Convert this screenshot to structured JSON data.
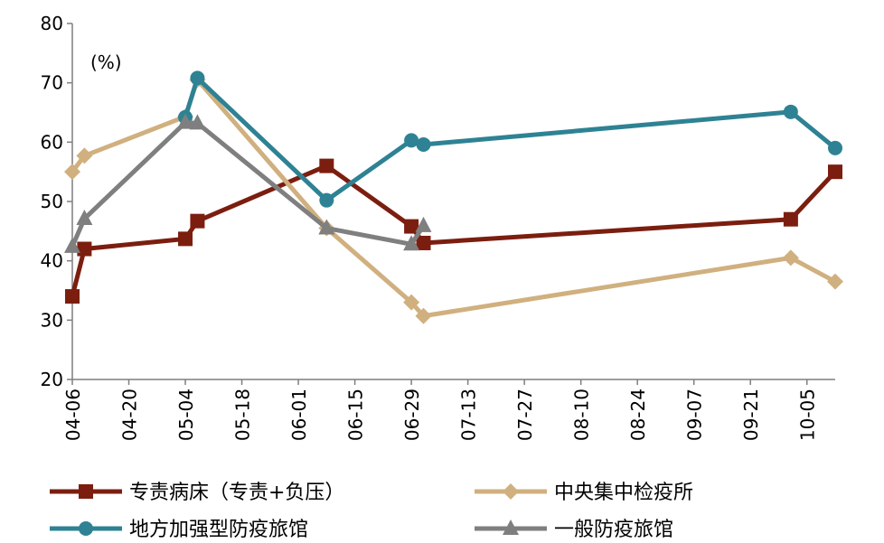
{
  "chart_data": {
    "type": "line",
    "title": "",
    "unit_label": "(%)",
    "xlabel": "",
    "ylabel": "",
    "ylim": [
      20,
      80
    ],
    "y_ticks": [
      20,
      30,
      40,
      50,
      60,
      70,
      80
    ],
    "grid": false,
    "x_ticks": [
      "04-06",
      "04-20",
      "05-04",
      "05-18",
      "06-01",
      "06-15",
      "06-29",
      "07-13",
      "07-27",
      "08-10",
      "08-24",
      "09-07",
      "09-21",
      "10-05"
    ],
    "x_tick_days": [
      0,
      14,
      28,
      42,
      56,
      70,
      84,
      98,
      112,
      126,
      140,
      154,
      168,
      182
    ],
    "x_range_days": [
      0,
      189
    ],
    "legend_position": "bottom",
    "series": [
      {
        "name": "专责病床（专责+负压）",
        "color": "#7b1e0f",
        "marker": "square",
        "x_days": [
          0,
          3,
          28,
          31,
          63,
          84,
          87,
          178,
          189
        ],
        "values": [
          34,
          42,
          43.7,
          46.7,
          56,
          45.8,
          43,
          47,
          55
        ]
      },
      {
        "name": "中央集中检疫所",
        "color": "#d0b07f",
        "marker": "diamond",
        "x_days": [
          0,
          3,
          28,
          31,
          63,
          84,
          87,
          178,
          189
        ],
        "values": [
          55,
          57.7,
          64.3,
          70.5,
          45.5,
          33,
          30.7,
          40.5,
          36.5
        ]
      },
      {
        "name": "地方加强型防疫旅馆",
        "color": "#2e8294",
        "marker": "circle",
        "x_days": [
          28,
          31,
          63,
          84,
          87,
          178,
          189
        ],
        "values": [
          64.2,
          70.8,
          50.2,
          60.3,
          59.6,
          65.1,
          59
        ]
      },
      {
        "name": "一般防疫旅馆",
        "color": "#7f7f7f",
        "marker": "triangle",
        "x_days": [
          0,
          3,
          28,
          31,
          63,
          84,
          87
        ],
        "values": [
          42.4,
          47.1,
          63.3,
          63.2,
          45.5,
          42.8,
          45.9
        ]
      }
    ]
  }
}
